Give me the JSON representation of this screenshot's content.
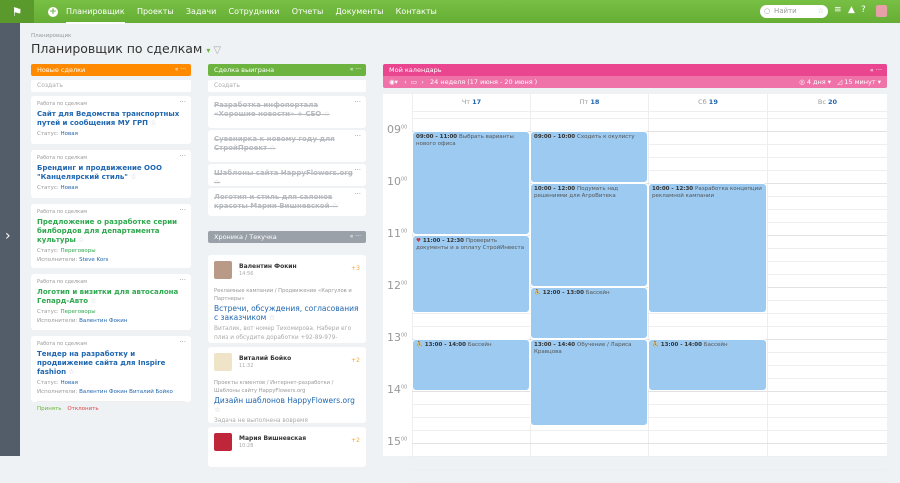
{
  "topbar": {
    "logo": "⚑",
    "nav": [
      "Планировщик",
      "Проекты",
      "Задачи",
      "Сотрудники",
      "Отчеты",
      "Документы",
      "Контакты"
    ],
    "search_placeholder": "Найти"
  },
  "page": {
    "breadcrumb": "Планировщик",
    "title": "Планировщик по сделкам"
  },
  "col_new": {
    "title": "Новые сделки",
    "color": "#ff8a00",
    "create": "Создать",
    "cards": [
      {
        "cat": "Работа по сделкам",
        "title": "Сайт для Ведомства транспортных путей и сообщения МУ ГРП",
        "status_label": "Статус:",
        "status": "Новая"
      },
      {
        "cat": "Работа по сделкам",
        "title": "Брендинг и продвижение ООО \"Канцелярский стиль\"",
        "status_label": "Статус:",
        "status": "Новая"
      },
      {
        "cat": "Работа по сделкам",
        "title": "Предложение о разработке серии билбордов для департамента культуры",
        "status_label": "Статус:",
        "status": "Переговоры",
        "exec_label": "Исполнители:",
        "exec": "Steve Kors"
      },
      {
        "cat": "Работа по сделкам",
        "title": "Логотип и визитки для автосалона Гепард-Авто",
        "status_label": "Статус:",
        "status": "Переговоры",
        "exec_label": "Исполнители:",
        "exec": "Валентин Фокин"
      },
      {
        "cat": "Работа по сделкам",
        "title": "Тендер на разработку и продвижение сайта для Inspire fashion",
        "status_label": "Статус:",
        "status": "Новая",
        "exec_label": "Исполнители:",
        "exec": "Валентин Фокин  Виталий Бойко",
        "accept": "Принять",
        "decline": "Отклонить"
      }
    ]
  },
  "col_won": {
    "title": "Сделка выиграна",
    "color": "#6db33f",
    "create": "Создать",
    "cards": [
      "Разработка инфопортала «Хорошие новости» + CEO",
      "Сувенирка к новому году для СтройПроект",
      "Шаблоны сайта HappyFlowers.org",
      "Логотип и стиль для салонов красоты Марии Вишневской"
    ]
  },
  "col_feed": {
    "title": "Хроника / Текучка",
    "color": "#9aa1a8",
    "items": [
      {
        "name": "Валентин Фокин",
        "time": "14:56",
        "count": "+3",
        "path": "Рекламные кампании / Продвижение «Каргулов и Партнеры»",
        "link": "Встречи, обсуждения, согласования с заказчиком",
        "text": "Виталик, вот номер Тихомирова. Набери его плиз и обсудите доработки +92-89-979-"
      },
      {
        "name": "Виталий Бойко",
        "time": "11:32",
        "count": "+2",
        "path": "Проекты клиентов / Интернет-разработки / Шаблоны сайту HappyFlowers.org",
        "link": "Дизайн шаблонов HappyFlowers.org",
        "text": "Задача не выполнена вовремя"
      },
      {
        "name": "Мария Вишневская",
        "time": "10:28",
        "count": "+2"
      }
    ]
  },
  "calendar": {
    "title": "Мой календарь",
    "color": "#e9468f",
    "week": "24 неделя  (17 июня - 20 июня )",
    "days_view": "4 дня",
    "step": "15 минут",
    "days": [
      {
        "wd": "Чт",
        "d": "17"
      },
      {
        "wd": "Пт",
        "d": "18"
      },
      {
        "wd": "Сб",
        "d": "19"
      },
      {
        "wd": "Вс",
        "d": "20"
      }
    ],
    "hours": [
      "09",
      "10",
      "11",
      "12",
      "13",
      "14",
      "15"
    ],
    "events": [
      {
        "day": 0,
        "start": "09:00",
        "end": "11:00",
        "title": "Выбрать варианты нового офиса"
      },
      {
        "day": 0,
        "start": "11:00",
        "end": "12:30",
        "title": "Проверить документы и а оплату СтройИнвеста",
        "icon": "♥"
      },
      {
        "day": 0,
        "start": "13:00",
        "end": "14:00",
        "title": "Бассейн",
        "icon": "⛹"
      },
      {
        "day": 1,
        "start": "09:00",
        "end": "10:00",
        "title": "Сходить к окулисту"
      },
      {
        "day": 1,
        "start": "10:00",
        "end": "12:00",
        "title": "Подумать над решениями для АгроВитека"
      },
      {
        "day": 1,
        "start": "12:00",
        "end": "13:00",
        "title": "Бассейн",
        "icon": "⛹"
      },
      {
        "day": 1,
        "start": "13:00",
        "end": "14:40",
        "title": "Обучение / Лариса Кравцова"
      },
      {
        "day": 2,
        "start": "10:00",
        "end": "12:30",
        "title": "Разработка концепции рекламной кампании"
      },
      {
        "day": 2,
        "start": "13:00",
        "end": "14:00",
        "title": "Бассейн",
        "icon": "⛹"
      }
    ]
  }
}
